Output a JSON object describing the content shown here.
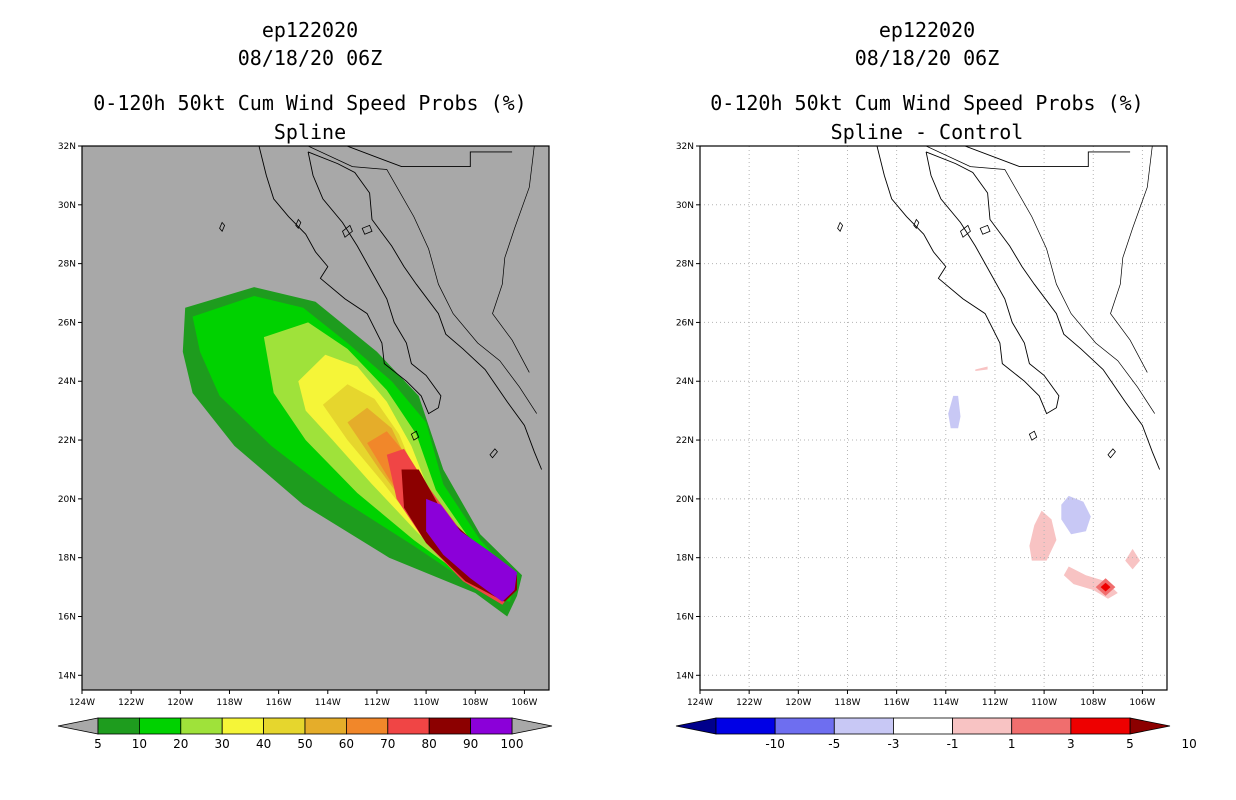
{
  "panels": [
    {
      "id": "left",
      "title_line1": "ep122020",
      "title_line2": "08/18/20 06Z",
      "title_line3": "0-120h 50kt Cum Wind Speed Probs (%)",
      "title_line4": "Spline"
    },
    {
      "id": "right",
      "title_line1": "ep122020",
      "title_line2": "08/18/20 06Z",
      "title_line3": "0-120h 50kt Cum Wind Speed Probs (%)",
      "title_line4": "Spline - Control"
    }
  ],
  "chart_data": [
    {
      "type": "heatmap",
      "title": "0-120h 50kt Cum Wind Speed Probs (%) Spline",
      "map_region": "Baja California / Eastern Pacific",
      "lon_range": [
        -124,
        -105
      ],
      "lat_range": [
        13.5,
        32
      ],
      "x_ticks": [
        "124W",
        "122W",
        "120W",
        "118W",
        "116W",
        "114W",
        "112W",
        "110W",
        "108W",
        "106W"
      ],
      "y_ticks": [
        "14N",
        "16N",
        "18N",
        "20N",
        "22N",
        "24N",
        "26N",
        "28N",
        "30N",
        "32N"
      ],
      "background": "#a8a8a8",
      "colorbar": {
        "labels": [
          "5",
          "10",
          "20",
          "30",
          "40",
          "50",
          "60",
          "70",
          "80",
          "90",
          "100"
        ],
        "colors": [
          "#1e9c1e",
          "#00d200",
          "#9fe23a",
          "#f5f538",
          "#e6d62d",
          "#e5ad2a",
          "#f1872a",
          "#f04545",
          "#8c0000",
          "#8b00d9"
        ]
      },
      "contours": [
        {
          "level": 5,
          "color": "#1e9c1e",
          "points": [
            [
              -119.8,
              26.5
            ],
            [
              -117.0,
              27.2
            ],
            [
              -114.5,
              26.7
            ],
            [
              -112.0,
              25.0
            ],
            [
              -110.3,
              23.5
            ],
            [
              -109.3,
              21.0
            ],
            [
              -107.8,
              18.8
            ],
            [
              -106.1,
              17.4
            ],
            [
              -106.3,
              16.7
            ],
            [
              -106.7,
              16.0
            ],
            [
              -108.0,
              16.8
            ],
            [
              -111.5,
              18.0
            ],
            [
              -115.0,
              19.8
            ],
            [
              -117.8,
              21.8
            ],
            [
              -119.5,
              23.6
            ],
            [
              -119.9,
              25.0
            ]
          ]
        },
        {
          "level": 10,
          "color": "#00d200",
          "points": [
            [
              -119.5,
              26.2
            ],
            [
              -117.0,
              26.9
            ],
            [
              -115.0,
              26.5
            ],
            [
              -113.2,
              25.3
            ],
            [
              -111.4,
              24.0
            ],
            [
              -110.0,
              22.6
            ],
            [
              -109.3,
              20.5
            ],
            [
              -107.8,
              18.6
            ],
            [
              -106.3,
              17.3
            ],
            [
              -106.6,
              16.5
            ],
            [
              -108.0,
              17.0
            ],
            [
              -110.5,
              18.4
            ],
            [
              -113.5,
              20.0
            ],
            [
              -116.3,
              21.8
            ],
            [
              -118.4,
              23.5
            ],
            [
              -119.2,
              25.0
            ]
          ]
        },
        {
          "level": 20,
          "color": "#9fe23a",
          "points": [
            [
              -116.6,
              25.5
            ],
            [
              -114.8,
              26.0
            ],
            [
              -113.2,
              25.1
            ],
            [
              -111.6,
              23.7
            ],
            [
              -110.4,
              22.2
            ],
            [
              -109.6,
              20.3
            ],
            [
              -108.2,
              18.6
            ],
            [
              -106.5,
              17.2
            ],
            [
              -106.8,
              16.5
            ],
            [
              -108.2,
              17.2
            ],
            [
              -110.5,
              18.6
            ],
            [
              -112.8,
              20.2
            ],
            [
              -114.9,
              22.0
            ],
            [
              -116.2,
              23.6
            ]
          ]
        },
        {
          "level": 30,
          "color": "#f5f538",
          "points": [
            [
              -115.2,
              24.0
            ],
            [
              -114.1,
              24.9
            ],
            [
              -112.8,
              24.5
            ],
            [
              -111.6,
              23.3
            ],
            [
              -110.6,
              21.8
            ],
            [
              -109.8,
              20.1
            ],
            [
              -108.3,
              18.5
            ],
            [
              -106.7,
              17.2
            ],
            [
              -107.0,
              16.6
            ],
            [
              -108.5,
              17.3
            ],
            [
              -110.4,
              18.9
            ],
            [
              -112.2,
              20.5
            ],
            [
              -113.8,
              22.0
            ],
            [
              -114.9,
              23.0
            ]
          ]
        },
        {
          "level": 40,
          "color": "#e6d62d",
          "points": [
            [
              -114.2,
              23.2
            ],
            [
              -113.2,
              23.9
            ],
            [
              -112.1,
              23.4
            ],
            [
              -111.1,
              22.2
            ],
            [
              -110.3,
              20.6
            ],
            [
              -108.6,
              18.7
            ],
            [
              -106.8,
              17.1
            ],
            [
              -107.1,
              16.7
            ],
            [
              -108.6,
              17.4
            ],
            [
              -110.3,
              19.0
            ],
            [
              -111.8,
              20.6
            ],
            [
              -113.2,
              22.0
            ]
          ]
        },
        {
          "level": 50,
          "color": "#e5ad2a",
          "points": [
            [
              -113.2,
              22.6
            ],
            [
              -112.4,
              23.1
            ],
            [
              -111.4,
              22.4
            ],
            [
              -110.6,
              21.0
            ],
            [
              -108.8,
              18.9
            ],
            [
              -106.9,
              17.1
            ],
            [
              -107.2,
              16.6
            ],
            [
              -108.8,
              17.6
            ],
            [
              -110.4,
              19.3
            ],
            [
              -111.9,
              21.0
            ]
          ]
        },
        {
          "level": 60,
          "color": "#f1872a",
          "points": [
            [
              -112.4,
              21.9
            ],
            [
              -111.6,
              22.3
            ],
            [
              -110.7,
              21.4
            ],
            [
              -109.0,
              19.3
            ],
            [
              -107.0,
              17.2
            ],
            [
              -107.3,
              16.6
            ],
            [
              -109.0,
              17.8
            ],
            [
              -110.6,
              19.5
            ],
            [
              -111.6,
              20.8
            ]
          ]
        },
        {
          "level": 70,
          "color": "#f04545",
          "points": [
            [
              -111.6,
              21.5
            ],
            [
              -110.9,
              21.7
            ],
            [
              -110.0,
              20.5
            ],
            [
              -108.3,
              18.6
            ],
            [
              -106.4,
              17.4
            ],
            [
              -106.5,
              16.8
            ],
            [
              -106.9,
              16.4
            ],
            [
              -108.5,
              17.2
            ],
            [
              -110.0,
              18.5
            ],
            [
              -111.2,
              20.0
            ]
          ]
        },
        {
          "level": 80,
          "color": "#8c0000",
          "points": [
            [
              -111.0,
              21.0
            ],
            [
              -110.3,
              21.0
            ],
            [
              -109.3,
              19.5
            ],
            [
              -107.6,
              18.2
            ],
            [
              -106.3,
              17.4
            ],
            [
              -106.3,
              16.9
            ],
            [
              -106.8,
              16.5
            ],
            [
              -108.4,
              17.2
            ],
            [
              -110.0,
              18.5
            ],
            [
              -110.9,
              19.7
            ]
          ]
        },
        {
          "level": 90,
          "color": "#8b00d9",
          "points": [
            [
              -110.0,
              20.0
            ],
            [
              -109.4,
              19.8
            ],
            [
              -108.6,
              18.9
            ],
            [
              -107.4,
              18.2
            ],
            [
              -106.3,
              17.5
            ],
            [
              -106.4,
              16.9
            ],
            [
              -106.9,
              16.5
            ],
            [
              -108.2,
              17.3
            ],
            [
              -109.3,
              18.1
            ],
            [
              -110.0,
              18.9
            ]
          ]
        }
      ]
    },
    {
      "type": "heatmap",
      "title": "0-120h 50kt Cum Wind Speed Probs (%) Spline - Control",
      "map_region": "Baja California / Eastern Pacific",
      "lon_range": [
        -124,
        -105
      ],
      "lat_range": [
        13.5,
        32
      ],
      "x_ticks": [
        "124W",
        "122W",
        "120W",
        "118W",
        "116W",
        "114W",
        "112W",
        "110W",
        "108W",
        "106W"
      ],
      "y_ticks": [
        "14N",
        "16N",
        "18N",
        "20N",
        "22N",
        "24N",
        "26N",
        "28N",
        "30N",
        "32N"
      ],
      "background": "#ffffff",
      "grid": true,
      "colorbar": {
        "labels": [
          "-10",
          "-5",
          "-3",
          "-1",
          "1",
          "3",
          "5",
          "10"
        ],
        "colors": [
          "#00008c",
          "#0000e6",
          "#6e6ef0",
          "#c8c8f5",
          "#ffffff",
          "#f8c3c3",
          "#f06e6e",
          "#ee0000",
          "#8c0000"
        ]
      },
      "contours": [
        {
          "level": -3,
          "color": "#c8c8f5",
          "points": [
            [
              -113.7,
              23.5
            ],
            [
              -113.5,
              23.5
            ],
            [
              -113.4,
              22.8
            ],
            [
              -113.5,
              22.4
            ],
            [
              -113.8,
              22.4
            ],
            [
              -113.9,
              22.9
            ]
          ]
        },
        {
          "level": -3,
          "color": "#c8c8f5",
          "points": [
            [
              -109.0,
              20.1
            ],
            [
              -108.4,
              19.9
            ],
            [
              -108.1,
              19.4
            ],
            [
              -108.3,
              18.9
            ],
            [
              -108.9,
              18.8
            ],
            [
              -109.3,
              19.3
            ],
            [
              -109.3,
              19.8
            ]
          ]
        },
        {
          "level": 3,
          "color": "#f8c3c3",
          "points": [
            [
              -110.1,
              19.6
            ],
            [
              -109.7,
              19.3
            ],
            [
              -109.5,
              18.6
            ],
            [
              -109.9,
              17.9
            ],
            [
              -110.5,
              17.9
            ],
            [
              -110.6,
              18.4
            ],
            [
              -110.4,
              19.1
            ]
          ]
        },
        {
          "level": 3,
          "color": "#f8c3c3",
          "points": [
            [
              -109.0,
              17.7
            ],
            [
              -108.3,
              17.4
            ],
            [
              -107.5,
              17.2
            ],
            [
              -107.0,
              16.8
            ],
            [
              -107.4,
              16.6
            ],
            [
              -108.0,
              16.9
            ],
            [
              -108.8,
              17.1
            ],
            [
              -109.2,
              17.4
            ]
          ]
        },
        {
          "level": 3,
          "color": "#f8c3c3",
          "points": [
            [
              -106.4,
              18.3
            ],
            [
              -106.1,
              17.9
            ],
            [
              -106.4,
              17.6
            ],
            [
              -106.7,
              17.9
            ]
          ]
        },
        {
          "level": 3,
          "color": "#f8c3c3",
          "points": [
            [
              -112.8,
              24.4
            ],
            [
              -112.3,
              24.5
            ],
            [
              -112.3,
              24.4
            ],
            [
              -112.8,
              24.35
            ]
          ]
        },
        {
          "level": 5,
          "color": "#f06e6e",
          "points": [
            [
              -107.5,
              17.3
            ],
            [
              -107.1,
              17.0
            ],
            [
              -107.5,
              16.7
            ],
            [
              -107.9,
              17.0
            ]
          ]
        },
        {
          "level": 10,
          "color": "#ee0000",
          "points": [
            [
              -107.5,
              17.15
            ],
            [
              -107.3,
              17.0
            ],
            [
              -107.5,
              16.85
            ],
            [
              -107.7,
              17.0
            ]
          ]
        }
      ]
    }
  ]
}
